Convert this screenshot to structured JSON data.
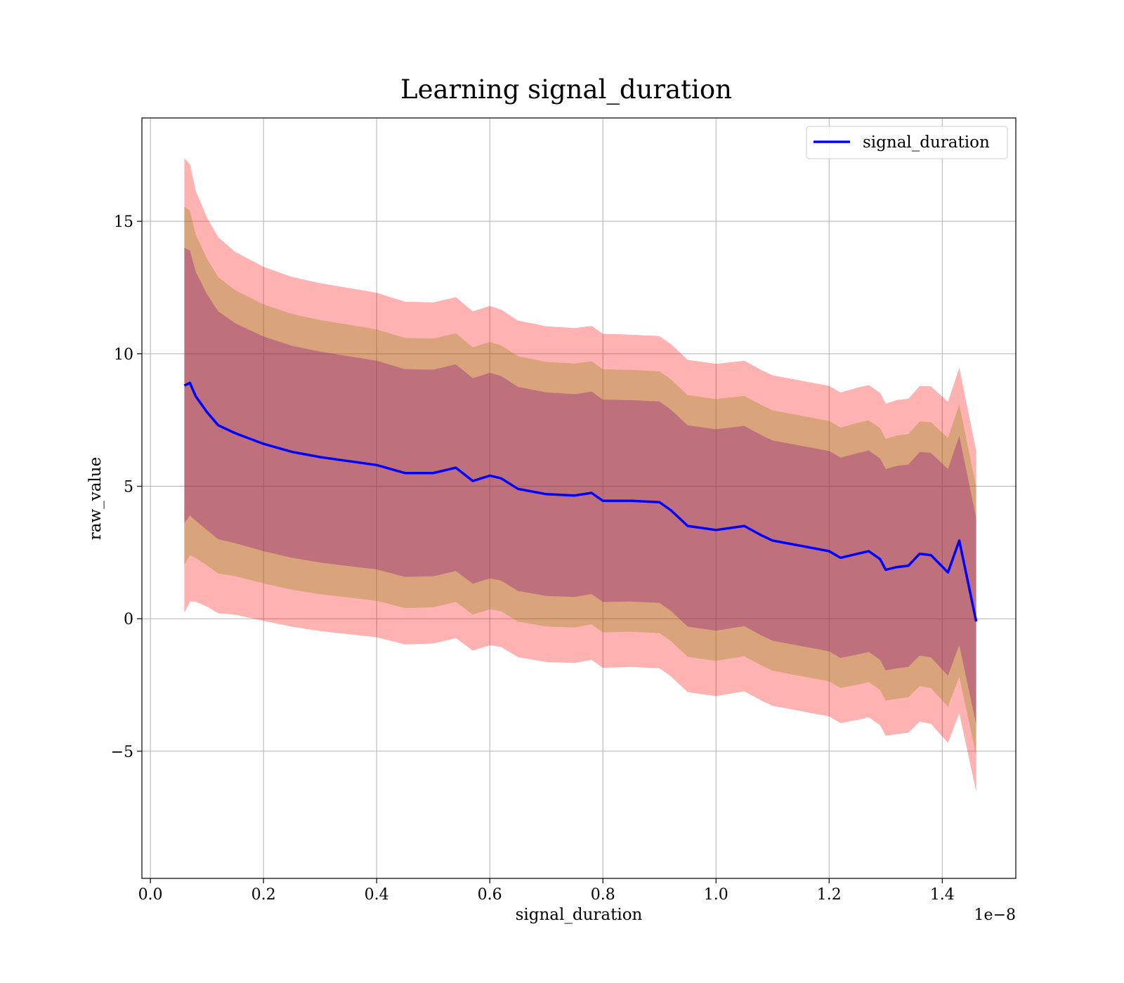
{
  "chart_data": {
    "type": "line",
    "title": "Learning signal_duration",
    "xlabel": "signal_duration",
    "ylabel": "raw_value",
    "x_offset_label": "1e−8",
    "xlim": [
      -0.015,
      1.53
    ],
    "ylim": [
      -9.8,
      18.9
    ],
    "x_ticks": [
      0.0,
      0.2,
      0.4,
      0.6,
      0.8,
      1.0,
      1.2,
      1.4
    ],
    "x_tick_labels": [
      "0.0",
      "0.2",
      "0.4",
      "0.6",
      "0.8",
      "1.0",
      "1.2",
      "1.4"
    ],
    "y_ticks": [
      -5,
      0,
      5,
      10,
      15
    ],
    "y_tick_labels": [
      "−5",
      "0",
      "5",
      "10",
      "15"
    ],
    "grid": true,
    "legend": {
      "position": "top-right",
      "entries": [
        "signal_duration"
      ]
    },
    "colors": {
      "line": "#0000ff",
      "band_outer": "#ff0000",
      "band_middle": "#808000",
      "band_inner": "#800080"
    },
    "x": [
      0.06,
      0.07,
      0.08,
      0.1,
      0.12,
      0.15,
      0.2,
      0.25,
      0.3,
      0.35,
      0.4,
      0.45,
      0.5,
      0.54,
      0.57,
      0.6,
      0.62,
      0.65,
      0.7,
      0.75,
      0.78,
      0.8,
      0.85,
      0.9,
      0.92,
      0.95,
      1.0,
      1.05,
      1.08,
      1.1,
      1.15,
      1.2,
      1.22,
      1.25,
      1.27,
      1.29,
      1.3,
      1.32,
      1.34,
      1.36,
      1.38,
      1.41,
      1.43,
      1.46
    ],
    "series": [
      {
        "name": "signal_duration",
        "values": [
          8.8,
          8.9,
          8.4,
          7.8,
          7.3,
          7.0,
          6.6,
          6.3,
          6.1,
          5.95,
          5.8,
          5.5,
          5.5,
          5.7,
          5.2,
          5.4,
          5.3,
          4.9,
          4.7,
          4.65,
          4.75,
          4.45,
          4.45,
          4.4,
          4.1,
          3.5,
          3.35,
          3.5,
          3.15,
          2.95,
          2.75,
          2.55,
          2.3,
          2.45,
          2.55,
          2.25,
          1.85,
          1.95,
          2.0,
          2.45,
          2.4,
          1.75,
          2.95,
          -0.1
        ]
      }
    ],
    "bands": [
      {
        "k": 1.65,
        "color": "band_outer"
      },
      {
        "k": 1.3,
        "color": "band_middle"
      },
      {
        "k": 1.0,
        "color": "band_inner"
      }
    ],
    "band_sigma": [
      5.2,
      5.0,
      4.7,
      4.45,
      4.3,
      4.15,
      4.05,
      4.0,
      3.98,
      3.96,
      3.94,
      3.92,
      3.9,
      3.9,
      3.88,
      3.88,
      3.86,
      3.85,
      3.84,
      3.83,
      3.82,
      3.82,
      3.8,
      3.8,
      3.8,
      3.8,
      3.8,
      3.78,
      3.78,
      3.78,
      3.78,
      3.78,
      3.78,
      3.8,
      3.8,
      3.8,
      3.8,
      3.82,
      3.82,
      3.84,
      3.86,
      3.9,
      3.95,
      3.9
    ]
  }
}
